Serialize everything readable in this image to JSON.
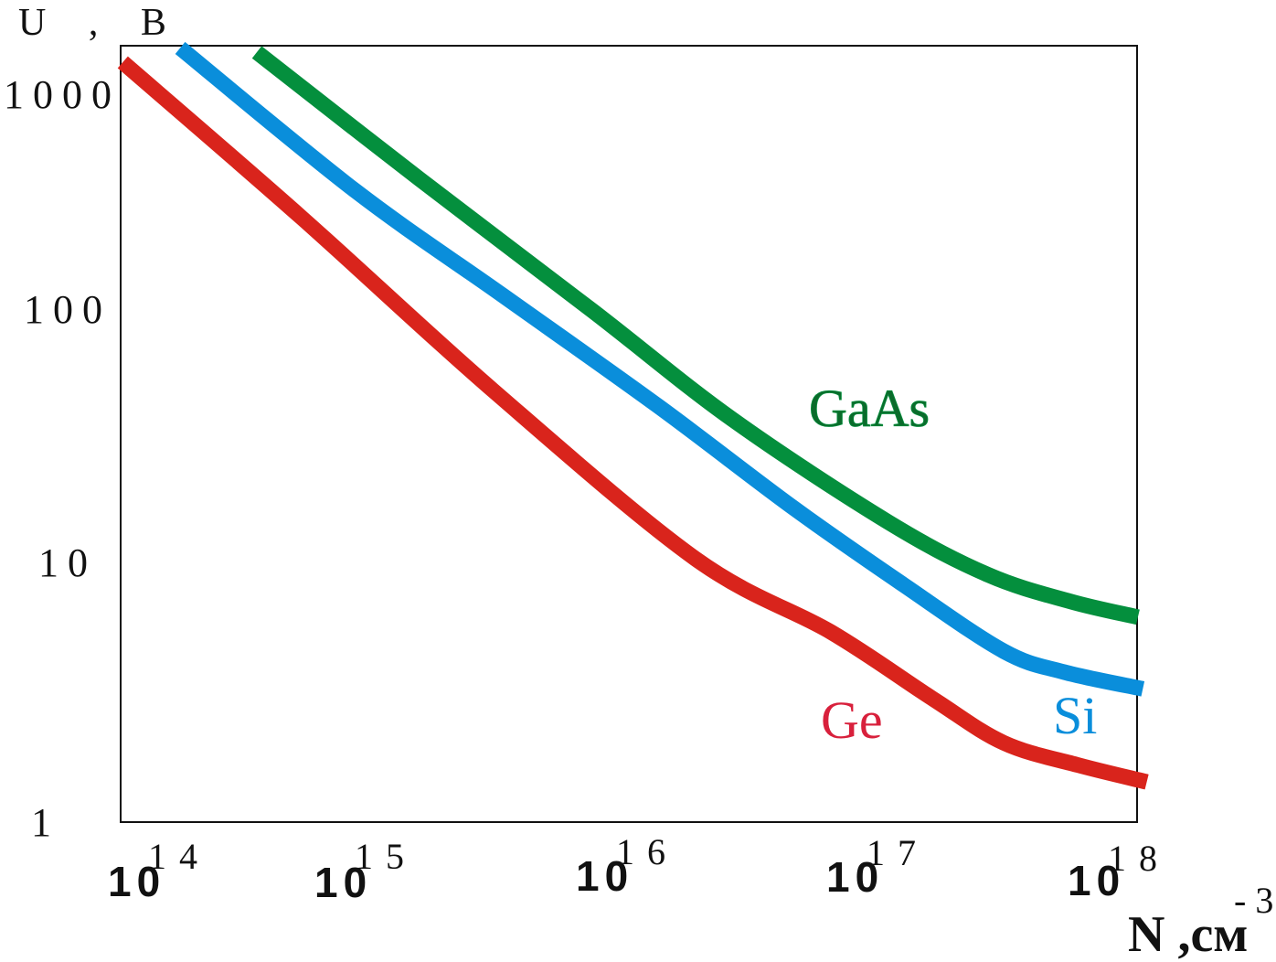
{
  "chart_data": {
    "type": "line",
    "title": "",
    "xscale": "log",
    "yscale": "log",
    "xlabel": "N ,см",
    "xlabel_superscript": "-3",
    "ylabel": "U , B",
    "xlim": [
      100000000000000.0,
      1e+18
    ],
    "ylim": [
      1,
      1600
    ],
    "grid": false,
    "x_ticks": [
      {
        "value": 14,
        "base": "10",
        "exp": "14"
      },
      {
        "value": 15,
        "base": "10",
        "exp": "15"
      },
      {
        "value": 16,
        "base": "10",
        "exp": "16"
      },
      {
        "value": 17,
        "base": "10",
        "exp": "17"
      },
      {
        "value": 18,
        "base": "10",
        "exp": "18"
      }
    ],
    "y_ticks": [
      {
        "value": 1000,
        "label": "1000"
      },
      {
        "value": 100,
        "label": "100"
      },
      {
        "value": 10,
        "label": "10"
      },
      {
        "value": 1,
        "label": "1"
      }
    ],
    "series": [
      {
        "name": "Ge",
        "color": "#d9241c",
        "label_color": "#d8203c",
        "points": [
          [
            102000000000000.0,
            1318
          ],
          [
            540000000000000.0,
            302
          ],
          [
            3200000000000000.0,
            59
          ],
          [
            2.1e+16,
            12
          ],
          [
            7.4e+16,
            6.0
          ],
          [
            1.9e+17,
            3.2
          ],
          [
            3.7e+17,
            2.1
          ],
          [
            7.4e+17,
            1.7
          ],
          [
            1.4e+18,
            1.45
          ]
        ]
      },
      {
        "name": "Si",
        "color": "#0a8edb",
        "label_color": "#0a8edb",
        "points": [
          [
            174000000000000.0,
            1510
          ],
          [
            890000000000000.0,
            390
          ],
          [
            3500000000000000.0,
            145
          ],
          [
            1.48e+16,
            51
          ],
          [
            5.2e+16,
            19.5
          ],
          [
            1.45e+17,
            9.4
          ],
          [
            3.7e+17,
            5.0
          ],
          [
            6.5e+17,
            4.1
          ],
          [
            1.35e+18,
            3.5
          ]
        ]
      },
      {
        "name": "GaAs",
        "color": "#048f3d",
        "label_color": "#0b6b2b",
        "points": [
          [
            355000000000000.0,
            1450
          ],
          [
            1620000000000000.0,
            435
          ],
          [
            8100000000000000.0,
            125
          ],
          [
            2.95e+16,
            45
          ],
          [
            1.26e+17,
            17
          ],
          [
            3.2e+17,
            10.3
          ],
          [
            6.9e+17,
            8.0
          ],
          [
            1.29e+18,
            6.9
          ]
        ]
      }
    ],
    "labels": {
      "Ge": "Ge",
      "Si": "Si",
      "GaAs": "GaAs"
    }
  }
}
